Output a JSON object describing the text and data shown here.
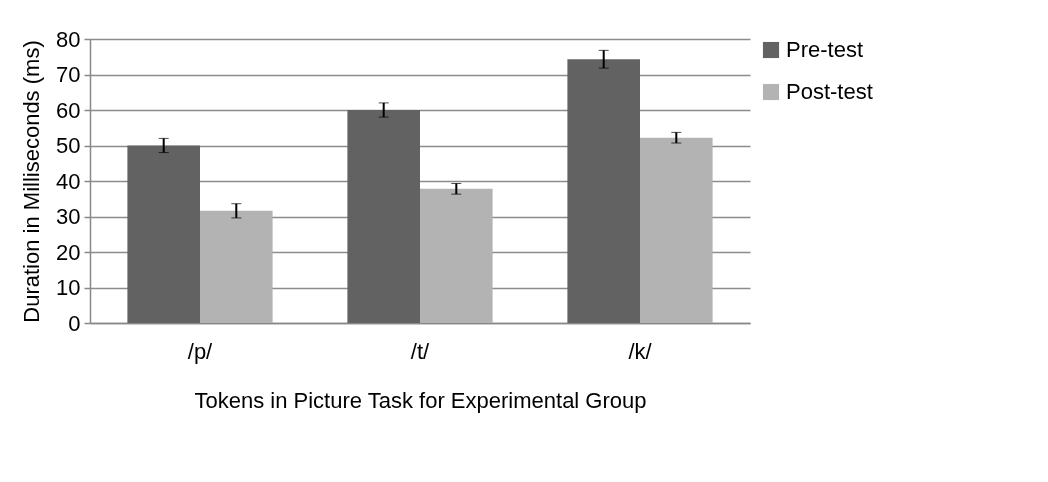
{
  "chart_data": {
    "type": "bar",
    "xlabel": "Tokens in Picture Task for Experimental Group",
    "ylabel": "Duration in Milliseconds (ms)",
    "categories": [
      "/p/",
      "/t/",
      "/k/"
    ],
    "series": [
      {
        "name": "Pre-test",
        "color": "#626262",
        "values": [
          50,
          60,
          74.3
        ],
        "errors": [
          2,
          2,
          2.5
        ]
      },
      {
        "name": "Post-test",
        "color": "#b3b3b3",
        "values": [
          31.6,
          37.8,
          52.2
        ],
        "errors": [
          2,
          1.5,
          1.5
        ]
      }
    ],
    "ylim": [
      0,
      80
    ],
    "yticks": [
      0,
      10,
      20,
      30,
      40,
      50,
      60,
      70,
      80
    ],
    "grid": "y",
    "legend": "right"
  }
}
